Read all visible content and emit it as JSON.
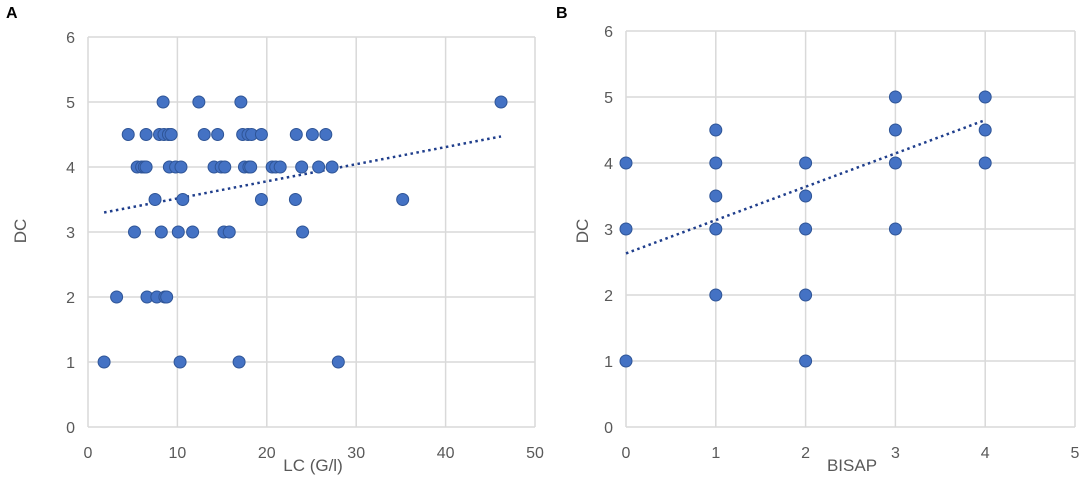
{
  "chart_data": [
    {
      "panel": "A",
      "type": "scatter",
      "xlabel": "LC (G/l)",
      "ylabel": "DC",
      "xlim": [
        0,
        50
      ],
      "ylim": [
        0,
        6
      ],
      "xticks": [
        0,
        10,
        20,
        30,
        40,
        50
      ],
      "yticks": [
        0,
        1,
        2,
        3,
        4,
        5,
        6
      ],
      "grid": true,
      "trendline": {
        "type": "linear",
        "x": [
          1.8,
          46.2
        ],
        "y": [
          3.3,
          4.47
        ]
      },
      "points": [
        {
          "x": 1.8,
          "y": 1
        },
        {
          "x": 3.2,
          "y": 2
        },
        {
          "x": 4.5,
          "y": 4.5
        },
        {
          "x": 5.2,
          "y": 3
        },
        {
          "x": 5.5,
          "y": 4
        },
        {
          "x": 6.0,
          "y": 4
        },
        {
          "x": 6.3,
          "y": 4
        },
        {
          "x": 6.5,
          "y": 4
        },
        {
          "x": 6.5,
          "y": 4.5
        },
        {
          "x": 6.6,
          "y": 2
        },
        {
          "x": 7.5,
          "y": 3.5
        },
        {
          "x": 7.7,
          "y": 2
        },
        {
          "x": 8.0,
          "y": 4.5
        },
        {
          "x": 8.2,
          "y": 3
        },
        {
          "x": 8.4,
          "y": 5
        },
        {
          "x": 8.5,
          "y": 4.5
        },
        {
          "x": 8.6,
          "y": 2
        },
        {
          "x": 8.8,
          "y": 2
        },
        {
          "x": 9.0,
          "y": 4.5
        },
        {
          "x": 9.1,
          "y": 4
        },
        {
          "x": 9.3,
          "y": 4.5
        },
        {
          "x": 9.8,
          "y": 4
        },
        {
          "x": 10.1,
          "y": 3
        },
        {
          "x": 10.3,
          "y": 1
        },
        {
          "x": 10.4,
          "y": 4
        },
        {
          "x": 10.6,
          "y": 3.5
        },
        {
          "x": 11.7,
          "y": 3
        },
        {
          "x": 12.4,
          "y": 5
        },
        {
          "x": 13.0,
          "y": 4.5
        },
        {
          "x": 14.1,
          "y": 4
        },
        {
          "x": 14.5,
          "y": 4.5
        },
        {
          "x": 14.9,
          "y": 4
        },
        {
          "x": 15.2,
          "y": 3
        },
        {
          "x": 15.3,
          "y": 4
        },
        {
          "x": 15.8,
          "y": 3
        },
        {
          "x": 16.9,
          "y": 1
        },
        {
          "x": 17.1,
          "y": 5
        },
        {
          "x": 17.3,
          "y": 4.5
        },
        {
          "x": 17.5,
          "y": 4
        },
        {
          "x": 17.9,
          "y": 4.5
        },
        {
          "x": 18.0,
          "y": 4
        },
        {
          "x": 18.2,
          "y": 4
        },
        {
          "x": 18.3,
          "y": 4.5
        },
        {
          "x": 19.4,
          "y": 4.5
        },
        {
          "x": 19.4,
          "y": 3.5
        },
        {
          "x": 20.6,
          "y": 4
        },
        {
          "x": 21.0,
          "y": 4
        },
        {
          "x": 21.5,
          "y": 4
        },
        {
          "x": 23.2,
          "y": 3.5
        },
        {
          "x": 23.3,
          "y": 4.5
        },
        {
          "x": 23.9,
          "y": 4
        },
        {
          "x": 24.0,
          "y": 3
        },
        {
          "x": 25.1,
          "y": 4.5
        },
        {
          "x": 25.8,
          "y": 4
        },
        {
          "x": 26.6,
          "y": 4.5
        },
        {
          "x": 27.3,
          "y": 4
        },
        {
          "x": 28.0,
          "y": 1
        },
        {
          "x": 35.2,
          "y": 3.5
        },
        {
          "x": 46.2,
          "y": 5
        }
      ]
    },
    {
      "panel": "B",
      "type": "scatter",
      "xlabel": "BISAP",
      "ylabel": "DC",
      "xlim": [
        0,
        5
      ],
      "ylim": [
        0,
        6
      ],
      "xticks": [
        0,
        1,
        2,
        3,
        4,
        5
      ],
      "yticks": [
        0,
        1,
        2,
        3,
        4,
        5,
        6
      ],
      "grid": true,
      "trendline": {
        "type": "linear",
        "x": [
          0,
          4
        ],
        "y": [
          2.63,
          4.65
        ]
      },
      "points": [
        {
          "x": 0,
          "y": 4
        },
        {
          "x": 0,
          "y": 3
        },
        {
          "x": 0,
          "y": 1
        },
        {
          "x": 1,
          "y": 4.5
        },
        {
          "x": 1,
          "y": 4
        },
        {
          "x": 1,
          "y": 3.5
        },
        {
          "x": 1,
          "y": 3
        },
        {
          "x": 1,
          "y": 2
        },
        {
          "x": 2,
          "y": 4
        },
        {
          "x": 2,
          "y": 3.5
        },
        {
          "x": 2,
          "y": 3
        },
        {
          "x": 2,
          "y": 2
        },
        {
          "x": 2,
          "y": 1
        },
        {
          "x": 3,
          "y": 5
        },
        {
          "x": 3,
          "y": 4.5
        },
        {
          "x": 3,
          "y": 4
        },
        {
          "x": 3,
          "y": 3
        },
        {
          "x": 4,
          "y": 5
        },
        {
          "x": 4,
          "y": 4.5
        },
        {
          "x": 4,
          "y": 4
        }
      ]
    }
  ]
}
